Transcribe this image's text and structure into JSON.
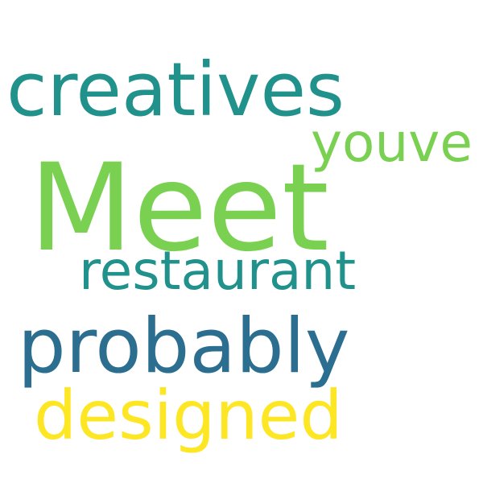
{
  "words": [
    {
      "text": "creatives",
      "color": "#21918c"
    },
    {
      "text": "youve",
      "color": "#7ad151"
    },
    {
      "text": "Meet",
      "color": "#7ad151"
    },
    {
      "text": "restaurant",
      "color": "#21918c"
    },
    {
      "text": "probably",
      "color": "#2c6e8f"
    },
    {
      "text": "designed",
      "color": "#fde725"
    }
  ]
}
